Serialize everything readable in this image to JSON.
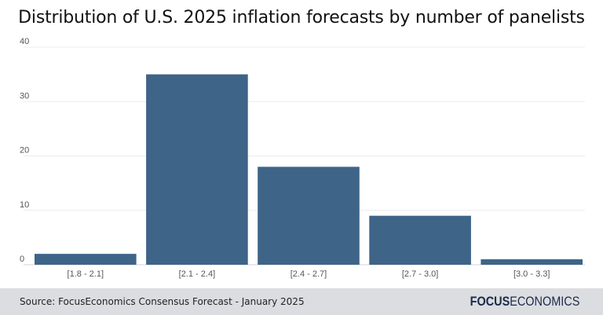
{
  "chart_data": {
    "type": "bar",
    "title": "Distribution of U.S. 2025 inflation forecasts by number of panelists",
    "categories": [
      "[1.8 - 2.1]",
      "[2.1 - 2.4]",
      "[2.4 - 2.7]",
      "[2.7 - 3.0]",
      "[3.0 - 3.3]"
    ],
    "values": [
      2,
      35,
      18,
      9,
      1
    ],
    "xlabel": "",
    "ylabel": "",
    "ylim": [
      0,
      40
    ],
    "yticks": [
      0,
      10,
      20,
      30,
      40
    ],
    "grid": true,
    "bar_color": "#3e6488"
  },
  "footer": {
    "source": "Source: FocusEconomics Consensus Forecast - January 2025",
    "logo_bold": "FOCUS",
    "logo_light": "ECONOMICS"
  }
}
